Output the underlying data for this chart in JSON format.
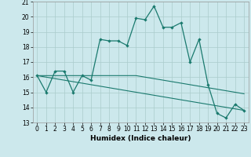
{
  "xlabel": "Humidex (Indice chaleur)",
  "background_color": "#cce8ec",
  "grid_color": "#aacccc",
  "line_color": "#1a7a6e",
  "x_data": [
    0,
    1,
    2,
    3,
    4,
    5,
    6,
    7,
    8,
    9,
    10,
    11,
    12,
    13,
    14,
    15,
    16,
    17,
    18,
    19,
    20,
    21,
    22,
    23
  ],
  "series1": [
    16.1,
    15.0,
    16.4,
    16.4,
    15.0,
    16.1,
    15.8,
    18.5,
    18.4,
    18.4,
    18.1,
    19.9,
    19.8,
    20.7,
    19.3,
    19.3,
    19.6,
    17.0,
    18.5,
    15.5,
    13.6,
    13.3,
    14.2,
    13.8
  ],
  "series2": [
    16.1,
    16.1,
    16.1,
    16.1,
    16.1,
    16.1,
    16.1,
    16.1,
    16.1,
    16.1,
    16.1,
    16.1,
    16.0,
    15.9,
    15.8,
    15.7,
    15.6,
    15.5,
    15.4,
    15.3,
    15.2,
    15.1,
    15.0,
    14.9
  ],
  "series3": [
    16.1,
    16.0,
    15.9,
    15.8,
    15.7,
    15.6,
    15.5,
    15.4,
    15.3,
    15.2,
    15.1,
    15.0,
    14.9,
    14.8,
    14.7,
    14.6,
    14.5,
    14.4,
    14.3,
    14.2,
    14.1,
    14.0,
    13.9,
    13.8
  ],
  "ylim": [
    13,
    21
  ],
  "xlim": [
    -0.5,
    23.5
  ],
  "yticks": [
    13,
    14,
    15,
    16,
    17,
    18,
    19,
    20,
    21
  ],
  "xticks": [
    0,
    1,
    2,
    3,
    4,
    5,
    6,
    7,
    8,
    9,
    10,
    11,
    12,
    13,
    14,
    15,
    16,
    17,
    18,
    19,
    20,
    21,
    22,
    23
  ],
  "tick_fontsize": 5.5,
  "xlabel_fontsize": 6.5
}
